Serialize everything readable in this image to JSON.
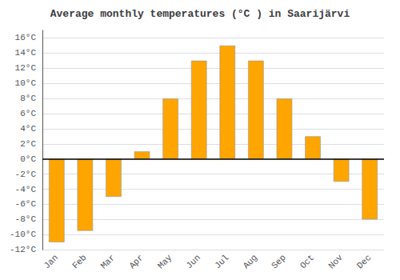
{
  "chart_data": {
    "type": "bar",
    "title": "Average monthly temperatures (°C ) in Saarijärvi",
    "categories": [
      "Jan",
      "Feb",
      "Mar",
      "Apr",
      "May",
      "Jun",
      "Jul",
      "Aug",
      "Sep",
      "Oct",
      "Nov",
      "Dec"
    ],
    "values": [
      -11,
      -9.5,
      -5,
      1,
      8,
      13,
      15,
      13,
      8,
      3,
      -3,
      -8
    ],
    "color": "#FFA500",
    "ylim": [
      -12,
      17
    ],
    "yticks": [
      {
        "value": -12,
        "label": "-12°C"
      },
      {
        "value": -10,
        "label": "-10°C"
      },
      {
        "value": -8,
        "label": "-8°C"
      },
      {
        "value": -6,
        "label": "-6°C"
      },
      {
        "value": -4,
        "label": "-4°C"
      },
      {
        "value": -2,
        "label": "-2°C"
      },
      {
        "value": 0,
        "label": "0°C"
      },
      {
        "value": 2,
        "label": "2°C"
      },
      {
        "value": 4,
        "label": "4°C"
      },
      {
        "value": 6,
        "label": "6°C"
      },
      {
        "value": 8,
        "label": "8°C"
      },
      {
        "value": 10,
        "label": "10°C"
      },
      {
        "value": 12,
        "label": "12°C"
      },
      {
        "value": 14,
        "label": "14°C"
      },
      {
        "value": 16,
        "label": "16°C"
      }
    ],
    "grid": true
  }
}
